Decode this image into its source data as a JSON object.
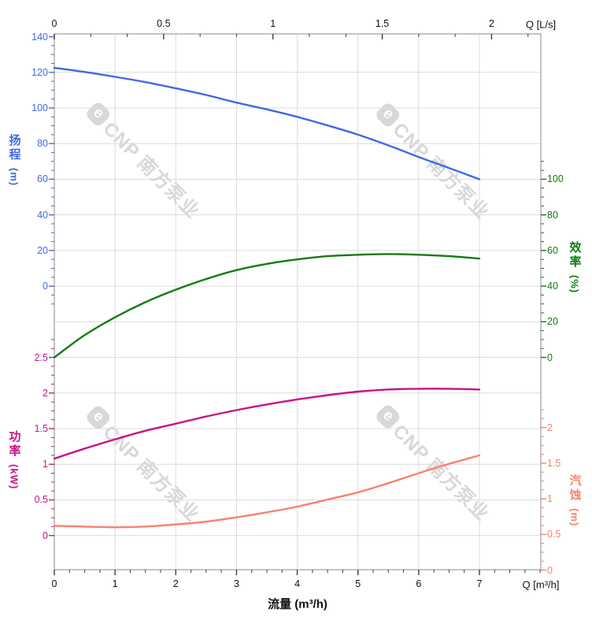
{
  "watermark": {
    "logo": "e",
    "text": "CNP 南方泵业",
    "color": "#d8d8d8"
  },
  "colors": {
    "grid": "#dcdcdc",
    "spine": "#ababab",
    "black_tick": "#3c3c3c",
    "head": "#4169e1",
    "efficiency": "#117c11",
    "power": "#c71585",
    "npsh": "#fa8072"
  },
  "chart_data": {
    "type": "line",
    "title": "",
    "grid": true,
    "legend": false,
    "x_bottom": {
      "label": "流量 (m³/h)",
      "unit_label": "Q [m³/h]",
      "ticks": [
        0,
        1,
        2,
        3,
        4,
        5,
        6,
        7
      ],
      "minor_step": 0.25,
      "range": [
        0,
        8
      ]
    },
    "x_top": {
      "unit_label": "Q [L/s]",
      "ticks": [
        0,
        0.5,
        1,
        1.5,
        2
      ],
      "scale_to_bottom": 3.6
    },
    "series": [
      {
        "id": "head",
        "name": "扬程",
        "unit": "(m)",
        "color": "#4169e1",
        "axis_side": "left",
        "axis_range": [
          0,
          140
        ],
        "axis_ticks": [
          140,
          120,
          100,
          80,
          60,
          40,
          20,
          0
        ],
        "points": [
          [
            0,
            122.5
          ],
          [
            0.5,
            120.2
          ],
          [
            1,
            117.5
          ],
          [
            1.5,
            114.5
          ],
          [
            2,
            111
          ],
          [
            2.5,
            107.3
          ],
          [
            3,
            103
          ],
          [
            3.5,
            99.2
          ],
          [
            4,
            95
          ],
          [
            4.5,
            90.2
          ],
          [
            5,
            85
          ],
          [
            5.5,
            79
          ],
          [
            6,
            72.5
          ],
          [
            6.5,
            66.3
          ],
          [
            7,
            60
          ]
        ]
      },
      {
        "id": "efficiency",
        "name": "效率",
        "unit": "(%)",
        "color": "#117c11",
        "axis_side": "right",
        "axis_range": [
          0,
          100
        ],
        "axis_ticks": [
          100,
          80,
          60,
          40,
          20,
          0
        ],
        "points": [
          [
            0,
            0
          ],
          [
            0.5,
            12.5
          ],
          [
            1,
            22.5
          ],
          [
            1.5,
            31
          ],
          [
            2,
            38
          ],
          [
            2.5,
            44
          ],
          [
            3,
            49
          ],
          [
            3.5,
            52.5
          ],
          [
            4,
            55
          ],
          [
            4.5,
            56.8
          ],
          [
            5,
            57.6
          ],
          [
            5.5,
            58
          ],
          [
            6,
            57.6
          ],
          [
            6.5,
            56.8
          ],
          [
            7,
            55.5
          ]
        ]
      },
      {
        "id": "power",
        "name": "功率",
        "unit": "(kW)",
        "color": "#c71585",
        "axis_side": "left",
        "axis_range": [
          0,
          2.5
        ],
        "axis_ticks": [
          2.5,
          2,
          1.5,
          1,
          0.5,
          0
        ],
        "points": [
          [
            0,
            1.08
          ],
          [
            0.5,
            1.22
          ],
          [
            1,
            1.35
          ],
          [
            1.5,
            1.47
          ],
          [
            2,
            1.57
          ],
          [
            2.5,
            1.67
          ],
          [
            3,
            1.76
          ],
          [
            3.5,
            1.84
          ],
          [
            4,
            1.91
          ],
          [
            4.5,
            1.97
          ],
          [
            5,
            2.02
          ],
          [
            5.5,
            2.05
          ],
          [
            6,
            2.06
          ],
          [
            6.5,
            2.06
          ],
          [
            7,
            2.05
          ]
        ]
      },
      {
        "id": "npsh",
        "name": "汽蚀",
        "unit": "(m)",
        "color": "#fa8072",
        "axis_side": "right",
        "axis_range": [
          0,
          2
        ],
        "axis_ticks": [
          2,
          1.5,
          1,
          0.5,
          0
        ],
        "points": [
          [
            0,
            0.62
          ],
          [
            0.5,
            0.61
          ],
          [
            1,
            0.6
          ],
          [
            1.5,
            0.61
          ],
          [
            2,
            0.64
          ],
          [
            2.5,
            0.68
          ],
          [
            3,
            0.74
          ],
          [
            3.5,
            0.81
          ],
          [
            4,
            0.89
          ],
          [
            4.5,
            0.99
          ],
          [
            5,
            1.09
          ],
          [
            5.5,
            1.22
          ],
          [
            6,
            1.36
          ],
          [
            6.5,
            1.49
          ],
          [
            7,
            1.61
          ]
        ]
      }
    ]
  }
}
